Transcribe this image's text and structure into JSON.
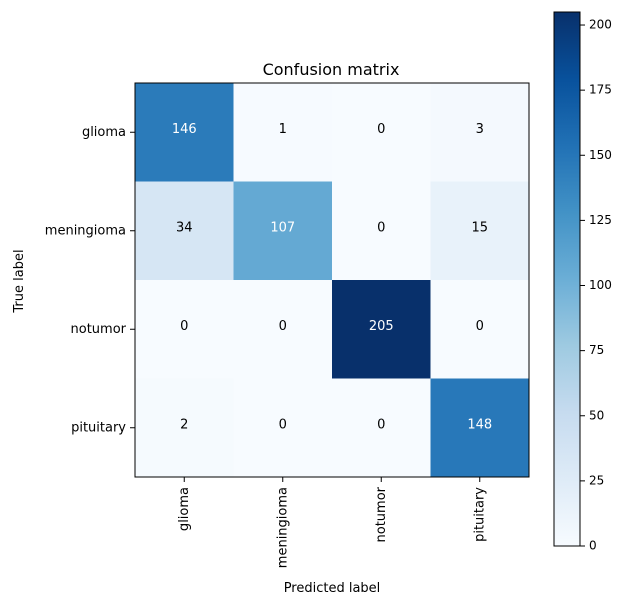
{
  "chart_data": {
    "type": "heatmap",
    "title": "Confusion matrix",
    "xlabel": "Predicted label",
    "ylabel": "True label",
    "x_categories": [
      "glioma",
      "meningioma",
      "notumor",
      "pituitary"
    ],
    "y_categories": [
      "glioma",
      "meningioma",
      "notumor",
      "pituitary"
    ],
    "values": [
      [
        146,
        1,
        0,
        3
      ],
      [
        34,
        107,
        0,
        15
      ],
      [
        0,
        0,
        205,
        0
      ],
      [
        2,
        0,
        0,
        148
      ]
    ],
    "colormap": "Blues",
    "colorbar": {
      "min": 0,
      "max": 205,
      "ticks": [
        0,
        25,
        50,
        75,
        100,
        125,
        150,
        175,
        200
      ]
    },
    "text_color_dark": "#000000",
    "text_color_light": "#ffffff"
  }
}
